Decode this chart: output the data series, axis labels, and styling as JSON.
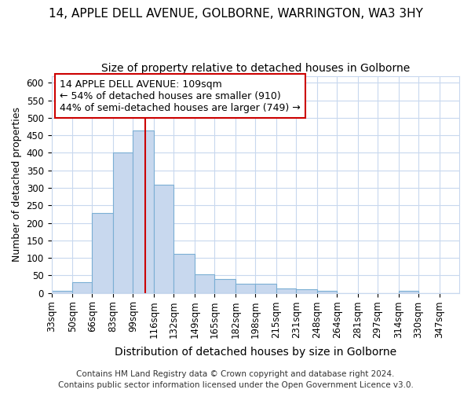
{
  "title": "14, APPLE DELL AVENUE, GOLBORNE, WARRINGTON, WA3 3HY",
  "subtitle": "Size of property relative to detached houses in Golborne",
  "xlabel": "Distribution of detached houses by size in Golborne",
  "ylabel": "Number of detached properties",
  "footer_line1": "Contains HM Land Registry data © Crown copyright and database right 2024.",
  "footer_line2": "Contains public sector information licensed under the Open Government Licence v3.0.",
  "annotation_line1": "14 APPLE DELL AVENUE: 109sqm",
  "annotation_line2": "← 54% of detached houses are smaller (910)",
  "annotation_line3": "44% of semi-detached houses are larger (749) →",
  "bar_edges": [
    33,
    50,
    66,
    83,
    99,
    116,
    132,
    149,
    165,
    182,
    198,
    215,
    231,
    248,
    264,
    281,
    297,
    314,
    330,
    347,
    363
  ],
  "bar_heights": [
    5,
    30,
    228,
    402,
    463,
    308,
    112,
    53,
    40,
    27,
    27,
    13,
    10,
    5,
    0,
    0,
    0,
    5,
    0,
    0
  ],
  "bar_color": "#c8d8ee",
  "bar_edgecolor": "#7bafd4",
  "vline_x": 109,
  "vline_color": "#cc0000",
  "ylim": [
    0,
    620
  ],
  "yticks": [
    0,
    50,
    100,
    150,
    200,
    250,
    300,
    350,
    400,
    450,
    500,
    550,
    600
  ],
  "background_color": "#ffffff",
  "plot_background": "#ffffff",
  "grid_color": "#c8d8ee",
  "annotation_box_color": "#ffffff",
  "annotation_border_color": "#cc0000",
  "title_fontsize": 11,
  "subtitle_fontsize": 10,
  "xlabel_fontsize": 10,
  "ylabel_fontsize": 9,
  "tick_fontsize": 8.5,
  "annotation_fontsize": 9,
  "footer_fontsize": 7.5
}
